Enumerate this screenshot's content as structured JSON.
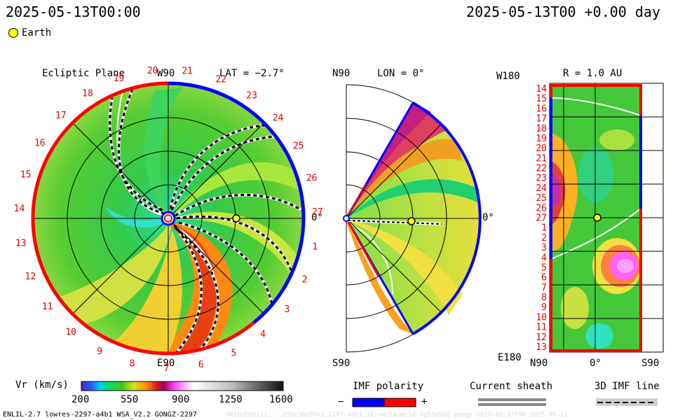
{
  "header": {
    "left_time": "2025-05-13T00:00",
    "right_time": "2025-05-13T00 +0.00 day",
    "legend_earth": "Earth"
  },
  "colors": {
    "earth_marker": "#ffff00",
    "positive_polarity": "#ff0000",
    "negative_polarity": "#0000ff",
    "sector_numbers": "#e00000"
  },
  "panel_ecliptic": {
    "title": "Ecliptic Plane",
    "top_label": "W90",
    "lat_label": "LAT = −2.7°",
    "right_label": "0°",
    "bottom_label": "E90",
    "carrington_numbers": [
      "20",
      "21",
      "22",
      "23",
      "24",
      "25",
      "26",
      "27",
      "1",
      "2",
      "3",
      "4",
      "5",
      "6",
      "7",
      "8",
      "9",
      "10",
      "11",
      "12",
      "13",
      "14",
      "15",
      "16",
      "17",
      "18",
      "19"
    ]
  },
  "panel_meridional": {
    "top_label": "N90",
    "lon_label": "LON = 0°",
    "right_label": "0°",
    "bottom_label": "S90"
  },
  "panel_map": {
    "top_left_label": "W180",
    "title": "R = 1.0 AU",
    "bottom_left_label": "E180",
    "x_labels": [
      "N90",
      "0°",
      "S90"
    ],
    "rows": [
      "14",
      "15",
      "16",
      "17",
      "18",
      "19",
      "20",
      "21",
      "22",
      "23",
      "24",
      "25",
      "26",
      "27",
      "1",
      "2",
      "3",
      "4",
      "5",
      "6",
      "7",
      "8",
      "9",
      "10",
      "11",
      "12",
      "13"
    ]
  },
  "colorbar": {
    "label": "Vr (km/s)",
    "ticks": [
      "200",
      "550",
      "900",
      "1250",
      "1600"
    ],
    "range": [
      200,
      1600
    ]
  },
  "legend": {
    "imf_polarity": "IMF polarity",
    "minus": "−",
    "plus": "+",
    "current_sheath": "Current sheath",
    "imf_line": "3D IMF line"
  },
  "footer": {
    "left": "ENLIL-2.7 lowres-2297-a4b1 WSA_V2.2 GONGZ-2297",
    "right": "UNIQUE05131... 256x30x90x1.2297-a4b1.16-noctanmcld-1g53q5d2.gongz-2025-05-13T00  2025-05-13"
  }
}
